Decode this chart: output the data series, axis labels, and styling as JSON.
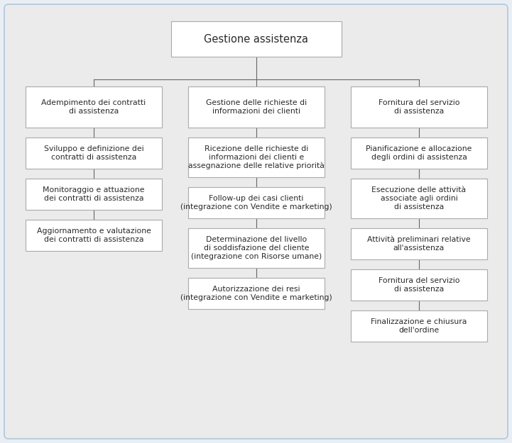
{
  "title": "Gestione assistenza",
  "background_color": "#e8eef4",
  "inner_bg": "#ebebeb",
  "outer_border_color": "#b0c8dc",
  "box_fill": "#ffffff",
  "box_edge": "#aaaaaa",
  "text_color": "#2a2a2a",
  "line_color": "#666666",
  "font_size": 7.8,
  "title_font_size": 10.5,
  "columns": [
    {
      "header": "Adempimento dei contratti\ndi assistenza",
      "items": [
        "Sviluppo e definizione dei\ncontratti di assistenza",
        "Monitoraggio e attuazione\ndei contratti di assistenza",
        "Aggiornamento e valutazione\ndei contratti di assistenza"
      ]
    },
    {
      "header": "Gestione delle richieste di\ninformazioni dei clienti",
      "items": [
        "Ricezione delle richieste di\ninformazioni dei clienti e\nassegnazione delle relative priorità",
        "Follow-up dei casi clienti\n(integrazione con Vendite e marketing)",
        "Determinazione del livello\ndi soddisfazione del cliente\n(integrazione con Risorse umane)",
        "Autorizzazione dei resi\n(integrazione con Vendite e marketing)"
      ]
    },
    {
      "header": "Fornitura del servizio\ndi assistenza",
      "items": [
        "Pianificazione e allocazione\ndegli ordini di assistenza",
        "Esecuzione delle attività\nassociate agli ordini\ndi assistenza",
        "Attività preliminari relative\nall'assistenza",
        "Fornitura del servizio\ndi assistenza",
        "Finalizzazione e chiusura\ndell'ordine"
      ]
    }
  ],
  "col_item_heights": [
    [
      0.44,
      0.44,
      0.44
    ],
    [
      0.56,
      0.44,
      0.56,
      0.44
    ],
    [
      0.44,
      0.56,
      0.44,
      0.44,
      0.44
    ]
  ]
}
